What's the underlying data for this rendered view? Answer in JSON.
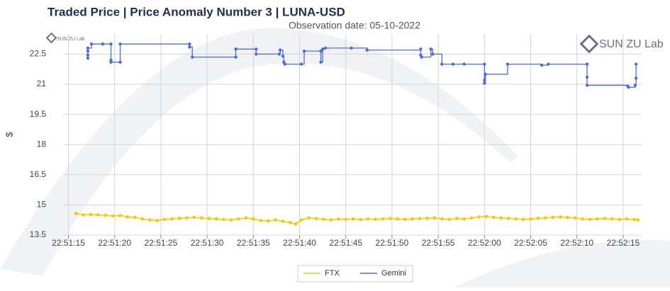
{
  "chart_data": {
    "type": "line",
    "title": "Traded Price  |  Price Anomaly Number 3  |  LUNA-USD",
    "subtitle": "Observation date: 05-10-2022",
    "watermark": "SUN ZU Lab",
    "y_label": "$",
    "xlim": [
      14.5,
      77
    ],
    "ylim": [
      13.5,
      23.5
    ],
    "xticks": [
      {
        "value": 15,
        "label": "22:51:15"
      },
      {
        "value": 20,
        "label": "22:51:20"
      },
      {
        "value": 25,
        "label": "22:51:25"
      },
      {
        "value": 30,
        "label": "22:51:30"
      },
      {
        "value": 35,
        "label": "22:51:35"
      },
      {
        "value": 40,
        "label": "22:51:40"
      },
      {
        "value": 45,
        "label": "22:51:45"
      },
      {
        "value": 50,
        "label": "22:51:50"
      },
      {
        "value": 55,
        "label": "22:51:55"
      },
      {
        "value": 60,
        "label": "22:52:00"
      },
      {
        "value": 65,
        "label": "22:52:05"
      },
      {
        "value": 70,
        "label": "22:52:10"
      },
      {
        "value": 75,
        "label": "22:52:15"
      }
    ],
    "yticks": [
      13.5,
      15,
      16.5,
      18,
      19.5,
      21,
      22.5
    ],
    "grid": true,
    "legend": "bottom",
    "series": [
      {
        "name": "FTX",
        "color": "#f2cc0c",
        "step": false,
        "x": [
          15.8,
          16.6,
          17.4,
          18.2,
          19,
          19.8,
          20.6,
          21.4,
          22.2,
          23,
          23.8,
          24.6,
          25.4,
          26.2,
          27,
          27.8,
          28.6,
          29.4,
          30.2,
          31,
          31.8,
          32.6,
          33.4,
          34.2,
          35,
          35.8,
          36.6,
          37.4,
          38.2,
          39,
          39.6,
          40.2,
          41,
          41.8,
          42.6,
          43.4,
          44.2,
          45,
          45.8,
          46.6,
          47.4,
          48.2,
          49,
          49.8,
          50.6,
          51.4,
          52.2,
          53,
          53.8,
          54.6,
          55.4,
          56.2,
          57,
          57.8,
          58.6,
          59.4,
          60.2,
          61,
          61.8,
          62.6,
          63.4,
          64.2,
          65,
          65.8,
          66.6,
          67.4,
          68.2,
          69,
          69.8,
          70.6,
          71.4,
          72.2,
          73,
          73.8,
          74.6,
          75.4,
          76.2,
          76.6
        ],
        "values": [
          14.58,
          14.5,
          14.52,
          14.5,
          14.48,
          14.45,
          14.47,
          14.4,
          14.38,
          14.3,
          14.25,
          14.22,
          14.28,
          14.3,
          14.33,
          14.35,
          14.38,
          14.35,
          14.32,
          14.3,
          14.27,
          14.25,
          14.3,
          14.35,
          14.3,
          14.22,
          14.2,
          14.25,
          14.18,
          14.12,
          14.05,
          14.25,
          14.35,
          14.32,
          14.28,
          14.25,
          14.3,
          14.28,
          14.3,
          14.27,
          14.3,
          14.28,
          14.3,
          14.32,
          14.3,
          14.28,
          14.3,
          14.32,
          14.33,
          14.35,
          14.3,
          14.28,
          14.32,
          14.3,
          14.35,
          14.4,
          14.42,
          14.38,
          14.35,
          14.33,
          14.3,
          14.28,
          14.3,
          14.33,
          14.35,
          14.38,
          14.4,
          14.37,
          14.35,
          14.3,
          14.28,
          14.3,
          14.32,
          14.3,
          14.28,
          14.3,
          14.27,
          14.25
        ]
      },
      {
        "name": "Gemini",
        "color": "#4a6fdc",
        "step": true,
        "x": [
          17.1,
          17.1,
          17.1,
          17.1,
          17.5,
          18.7,
          19.6,
          19.6,
          19.6,
          20.6,
          20.6,
          28.1,
          28.1,
          28.4,
          33.1,
          33.1,
          35.3,
          35.3,
          37.8,
          37.9,
          38.2,
          38.3,
          38.4,
          40.2,
          40.5,
          42.3,
          42.3,
          42.5,
          42.8,
          45.6,
          47.3,
          53.1,
          53.1,
          53.2,
          54.2,
          54.4,
          55.4,
          56.6,
          57.8,
          60.0,
          60.0,
          60.0,
          60.1,
          62.5,
          66.2,
          66.9,
          71.1,
          71.1,
          71.1,
          75.5,
          75.6,
          76.3,
          76.4,
          76.4
        ],
        "values": [
          22.3,
          22.45,
          22.65,
          22.8,
          23.0,
          23.0,
          23.0,
          22.2,
          22.1,
          22.1,
          23.0,
          23.0,
          22.85,
          22.35,
          22.35,
          22.75,
          22.75,
          22.5,
          22.5,
          22.7,
          22.4,
          22.1,
          22.0,
          22.0,
          22.65,
          22.65,
          22.1,
          22.75,
          22.8,
          22.8,
          22.7,
          22.75,
          22.45,
          22.35,
          22.75,
          22.5,
          22.0,
          22.0,
          22.0,
          22.0,
          21.2,
          21.05,
          21.5,
          22.0,
          21.95,
          22.0,
          22.0,
          21.35,
          20.95,
          20.9,
          20.85,
          20.95,
          21.3,
          22.0
        ]
      }
    ]
  }
}
